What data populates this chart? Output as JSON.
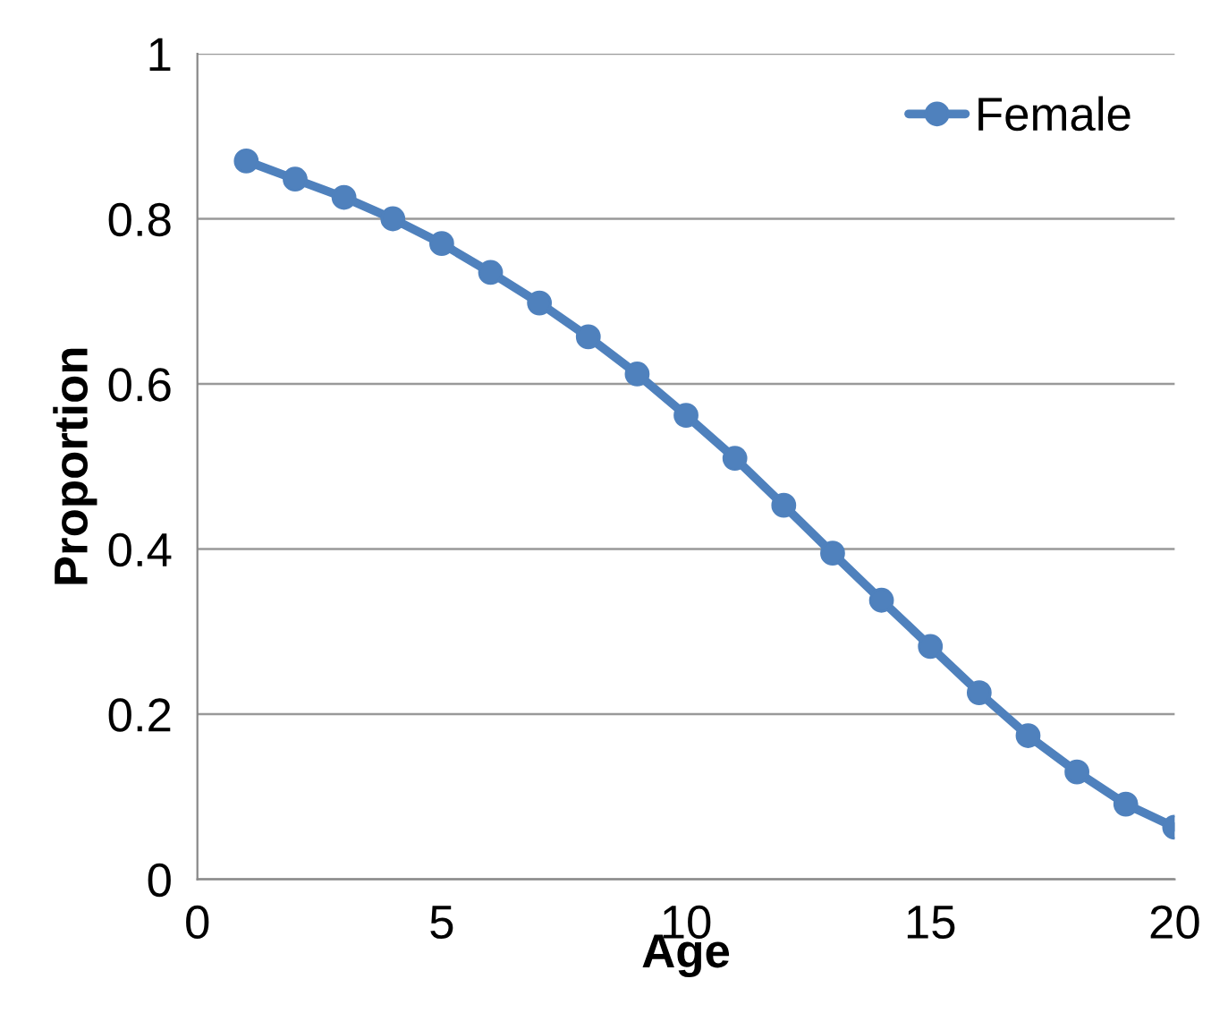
{
  "chart_data": {
    "type": "line",
    "xlabel": "Age",
    "ylabel": "Proportion",
    "x": [
      1,
      2,
      3,
      4,
      5,
      6,
      7,
      8,
      9,
      10,
      11,
      12,
      13,
      14,
      15,
      16,
      17,
      18,
      19,
      20
    ],
    "series": [
      {
        "name": "Female",
        "color": "#4f81bd",
        "values": [
          0.87,
          0.848,
          0.826,
          0.8,
          0.77,
          0.735,
          0.698,
          0.657,
          0.612,
          0.562,
          0.51,
          0.453,
          0.395,
          0.338,
          0.282,
          0.226,
          0.174,
          0.13,
          0.091,
          0.063
        ]
      }
    ],
    "xlim": [
      0,
      20
    ],
    "xticks": [
      0,
      5,
      10,
      15,
      20
    ],
    "ylim": [
      0,
      1
    ],
    "yticks": [
      0,
      0.2,
      0.4,
      0.6,
      0.8,
      1
    ],
    "grid": "y",
    "legend": "top right",
    "marker": "circle",
    "line_style": "solid"
  }
}
